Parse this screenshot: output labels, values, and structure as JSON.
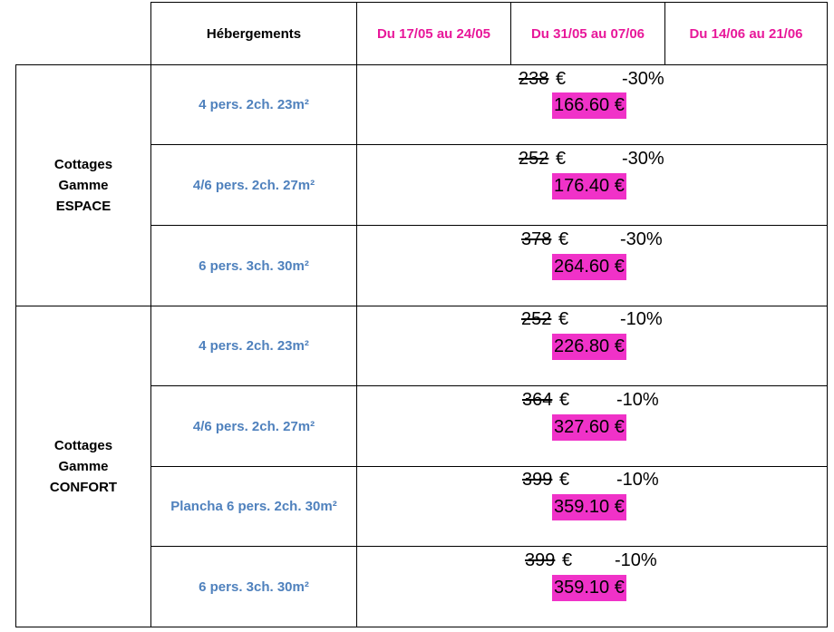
{
  "header": {
    "accommodations": "Hébergements",
    "periods": [
      "Du 17/05 au 24/05",
      "Du 31/05 au 07/06",
      "Du 14/06 au 21/06"
    ]
  },
  "groups": [
    {
      "line1": "Cottages",
      "line2": "Gamme",
      "line3": "ESPACE"
    },
    {
      "line1": "Cottages",
      "line2": "Gamme",
      "line3": "CONFORT"
    }
  ],
  "rows": [
    {
      "accommodation": "4 pers. 2ch. 23m²",
      "old_price": "238",
      "currency": "€",
      "discount": "-30%",
      "new_price": "166.60 €"
    },
    {
      "accommodation": "4/6 pers. 2ch. 27m²",
      "old_price": "252",
      "currency": "€",
      "discount": "-30%",
      "new_price": "176.40 €"
    },
    {
      "accommodation": "6 pers. 3ch. 30m²",
      "old_price": "378",
      "currency": "€",
      "discount": "-30%",
      "new_price": "264.60 €"
    },
    {
      "accommodation": "4 pers. 2ch. 23m²",
      "old_price": "252",
      "currency": "€",
      "discount": "-10%",
      "new_price": "226.80 €"
    },
    {
      "accommodation": "4/6 pers. 2ch. 27m²",
      "old_price": "364",
      "currency": "€",
      "discount": "-10%",
      "new_price": "327.60 €"
    },
    {
      "accommodation": "Plancha 6 pers. 2ch. 30m²",
      "old_price": "399",
      "currency": "€",
      "discount": "-10%",
      "new_price": "359.10 €"
    },
    {
      "accommodation": "6 pers. 3ch. 30m²",
      "old_price": "399",
      "currency": "€",
      "discount": "-10%",
      "new_price": "359.10 €"
    }
  ],
  "colors": {
    "header_date": "#e8189a",
    "accommodation_text": "#4f81bd",
    "highlight": "#f032c8"
  }
}
